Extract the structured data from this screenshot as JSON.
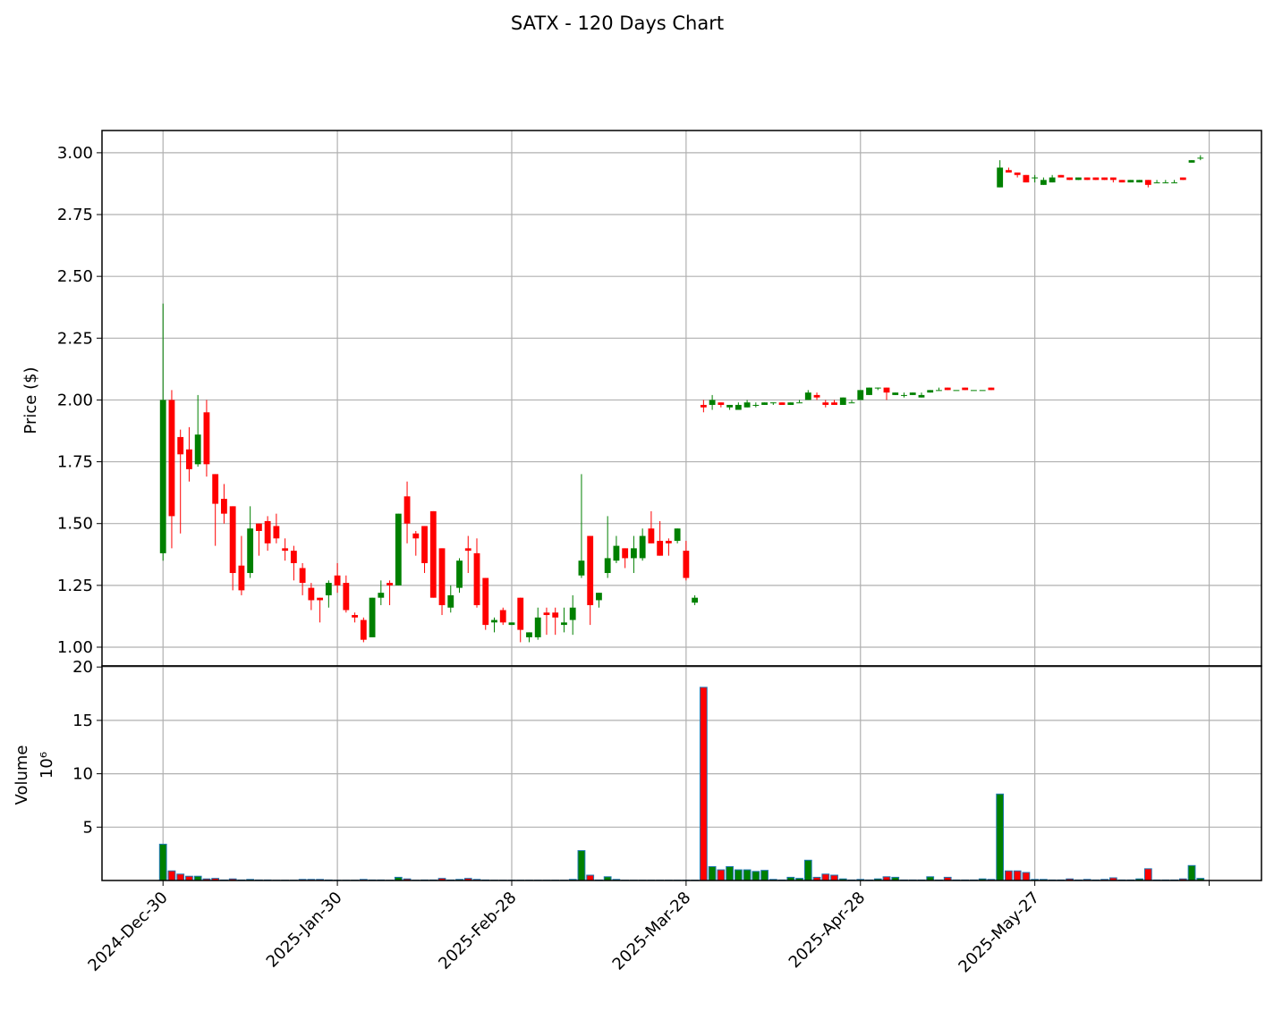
{
  "chart_data": {
    "type": "candlestick",
    "title": "SATX - 120 Days Chart",
    "ylabel": "Price ($)",
    "x": [
      0,
      1,
      2,
      3,
      4,
      5,
      6,
      7,
      8,
      9,
      10,
      11,
      12,
      13,
      14,
      15,
      16,
      17,
      18,
      19,
      20,
      21,
      22,
      23,
      24,
      25,
      26,
      27,
      28,
      29,
      30,
      31,
      32,
      33,
      34,
      35,
      36,
      37,
      38,
      39,
      40,
      41,
      42,
      43,
      44,
      45,
      46,
      47,
      48,
      49,
      50,
      51,
      52,
      53,
      54,
      55,
      56,
      57,
      58,
      59,
      60,
      61,
      62,
      63,
      64,
      65,
      66,
      67,
      68,
      69,
      70,
      71,
      72,
      73,
      74,
      75,
      76,
      77,
      78,
      79,
      80,
      81,
      82,
      83,
      84,
      85,
      86,
      87,
      88,
      89,
      90,
      91,
      92,
      93,
      94,
      95,
      96,
      97,
      98,
      99,
      100,
      101,
      102,
      103,
      104,
      105,
      106,
      107,
      108,
      109,
      110,
      111,
      112,
      113,
      114,
      115,
      116,
      117,
      118,
      119
    ],
    "open": [
      1.38,
      2.0,
      1.85,
      1.8,
      1.74,
      1.95,
      1.7,
      1.6,
      1.57,
      1.33,
      1.3,
      1.5,
      1.51,
      1.49,
      1.4,
      1.39,
      1.32,
      1.24,
      1.2,
      1.21,
      1.29,
      1.26,
      1.13,
      1.11,
      1.04,
      1.2,
      1.26,
      1.25,
      1.61,
      1.46,
      1.49,
      1.55,
      1.4,
      1.16,
      1.24,
      1.4,
      1.38,
      1.28,
      1.1,
      1.15,
      1.09,
      1.2,
      1.04,
      1.04,
      1.14,
      1.14,
      1.09,
      1.11,
      1.29,
      1.45,
      1.19,
      1.3,
      1.35,
      1.4,
      1.36,
      1.36,
      1.48,
      1.43,
      1.43,
      1.43,
      1.39,
      1.18,
      1.98,
      1.98,
      1.99,
      1.97,
      1.96,
      1.97,
      1.98,
      1.98,
      1.99,
      1.99,
      1.98,
      1.99,
      2.0,
      2.02,
      1.99,
      1.99,
      1.98,
      1.99,
      2.0,
      2.02,
      2.05,
      2.05,
      2.02,
      2.02,
      2.02,
      2.01,
      2.03,
      2.04,
      2.05,
      2.04,
      2.05,
      2.04,
      2.04,
      2.05,
      2.86,
      2.93,
      2.92,
      2.91,
      2.9,
      2.87,
      2.88,
      2.91,
      2.9,
      2.89,
      2.9,
      2.9,
      2.9,
      2.9,
      2.89,
      2.88,
      2.88,
      2.89,
      2.88,
      2.88,
      2.88,
      2.9,
      2.96,
      2.98
    ],
    "close": [
      2.0,
      1.53,
      1.78,
      1.72,
      1.86,
      1.74,
      1.58,
      1.54,
      1.3,
      1.23,
      1.48,
      1.47,
      1.42,
      1.44,
      1.39,
      1.34,
      1.26,
      1.19,
      1.19,
      1.26,
      1.25,
      1.15,
      1.12,
      1.03,
      1.2,
      1.22,
      1.25,
      1.54,
      1.5,
      1.44,
      1.34,
      1.2,
      1.17,
      1.21,
      1.35,
      1.39,
      1.17,
      1.09,
      1.11,
      1.1,
      1.1,
      1.07,
      1.06,
      1.12,
      1.13,
      1.12,
      1.1,
      1.16,
      1.35,
      1.17,
      1.22,
      1.36,
      1.41,
      1.36,
      1.4,
      1.45,
      1.42,
      1.37,
      1.42,
      1.48,
      1.28,
      1.2,
      1.97,
      2.0,
      1.98,
      1.98,
      1.98,
      1.99,
      1.98,
      1.99,
      1.99,
      1.98,
      1.99,
      1.99,
      2.03,
      2.01,
      1.98,
      1.98,
      2.01,
      1.99,
      2.04,
      2.05,
      2.05,
      2.03,
      2.03,
      2.02,
      2.03,
      2.02,
      2.04,
      2.04,
      2.04,
      2.04,
      2.04,
      2.04,
      2.04,
      2.04,
      2.94,
      2.92,
      2.91,
      2.88,
      2.9,
      2.89,
      2.9,
      2.9,
      2.89,
      2.9,
      2.89,
      2.89,
      2.89,
      2.89,
      2.88,
      2.89,
      2.89,
      2.87,
      2.88,
      2.88,
      2.88,
      2.89,
      2.97,
      2.98
    ],
    "high": [
      2.39,
      2.04,
      1.88,
      1.89,
      2.02,
      2.0,
      1.7,
      1.66,
      1.57,
      1.45,
      1.57,
      1.5,
      1.53,
      1.54,
      1.44,
      1.41,
      1.34,
      1.26,
      1.2,
      1.27,
      1.34,
      1.29,
      1.14,
      1.12,
      1.2,
      1.27,
      1.27,
      1.54,
      1.67,
      1.47,
      1.49,
      1.55,
      1.4,
      1.25,
      1.36,
      1.45,
      1.44,
      1.28,
      1.12,
      1.16,
      1.1,
      1.2,
      1.06,
      1.16,
      1.16,
      1.16,
      1.16,
      1.21,
      1.7,
      1.45,
      1.22,
      1.53,
      1.45,
      1.4,
      1.45,
      1.48,
      1.55,
      1.51,
      1.44,
      1.48,
      1.43,
      1.21,
      2.0,
      2.02,
      1.99,
      1.98,
      1.99,
      2.0,
      1.99,
      1.99,
      1.99,
      1.99,
      1.99,
      2.0,
      2.04,
      2.03,
      2.0,
      2.0,
      2.01,
      2.0,
      2.04,
      2.05,
      2.05,
      2.05,
      2.03,
      2.03,
      2.03,
      2.03,
      2.04,
      2.05,
      2.05,
      2.04,
      2.05,
      2.04,
      2.04,
      2.05,
      2.97,
      2.94,
      2.92,
      2.91,
      2.91,
      2.9,
      2.91,
      2.91,
      2.9,
      2.9,
      2.9,
      2.9,
      2.9,
      2.9,
      2.89,
      2.89,
      2.89,
      2.89,
      2.89,
      2.89,
      2.89,
      2.9,
      2.97,
      2.99
    ],
    "low": [
      1.35,
      1.4,
      1.46,
      1.67,
      1.73,
      1.69,
      1.41,
      1.5,
      1.23,
      1.21,
      1.28,
      1.37,
      1.39,
      1.42,
      1.35,
      1.27,
      1.21,
      1.15,
      1.1,
      1.16,
      1.22,
      1.14,
      1.1,
      1.02,
      1.04,
      1.17,
      1.17,
      1.25,
      1.42,
      1.37,
      1.3,
      1.2,
      1.13,
      1.14,
      1.22,
      1.3,
      1.16,
      1.07,
      1.06,
      1.09,
      1.09,
      1.02,
      1.02,
      1.03,
      1.05,
      1.05,
      1.06,
      1.05,
      1.28,
      1.09,
      1.16,
      1.28,
      1.34,
      1.32,
      1.3,
      1.35,
      1.42,
      1.37,
      1.37,
      1.42,
      1.27,
      1.17,
      1.95,
      1.96,
      1.97,
      1.96,
      1.96,
      1.97,
      1.97,
      1.98,
      1.98,
      1.98,
      1.98,
      1.99,
      2.0,
      2.0,
      1.97,
      1.98,
      1.98,
      1.99,
      2.0,
      2.02,
      2.04,
      2.0,
      2.02,
      2.01,
      2.02,
      2.01,
      2.03,
      2.04,
      2.04,
      2.04,
      2.04,
      2.04,
      2.04,
      2.04,
      2.86,
      2.92,
      2.9,
      2.88,
      2.88,
      2.87,
      2.88,
      2.9,
      2.89,
      2.89,
      2.89,
      2.89,
      2.89,
      2.88,
      2.88,
      2.88,
      2.88,
      2.86,
      2.88,
      2.88,
      2.88,
      2.89,
      2.96,
      2.97
    ],
    "volume": [
      3.4,
      0.9,
      0.6,
      0.4,
      0.4,
      0.15,
      0.2,
      0.05,
      0.15,
      0.05,
      0.1,
      0.05,
      0.05,
      0.03,
      0.03,
      0.03,
      0.1,
      0.1,
      0.1,
      0.05,
      0.03,
      0.03,
      0.03,
      0.1,
      0.05,
      0.05,
      0.03,
      0.3,
      0.15,
      0.03,
      0.05,
      0.05,
      0.2,
      0.05,
      0.1,
      0.2,
      0.1,
      0.05,
      0.03,
      0.03,
      0.03,
      0.03,
      0.03,
      0.03,
      0.03,
      0.03,
      0.03,
      0.1,
      2.8,
      0.5,
      0.05,
      0.35,
      0.1,
      0.03,
      0.03,
      0.03,
      0.03,
      0.03,
      0.03,
      0.03,
      0.03,
      0.03,
      18.1,
      1.3,
      1.0,
      1.3,
      1.0,
      1.0,
      0.85,
      0.95,
      0.1,
      0.05,
      0.3,
      0.2,
      1.9,
      0.3,
      0.6,
      0.5,
      0.15,
      0.05,
      0.1,
      0.05,
      0.15,
      0.35,
      0.3,
      0.05,
      0.05,
      0.05,
      0.35,
      0.05,
      0.3,
      0.05,
      0.05,
      0.05,
      0.15,
      0.1,
      8.1,
      0.9,
      0.9,
      0.75,
      0.1,
      0.1,
      0.05,
      0.05,
      0.15,
      0.05,
      0.1,
      0.05,
      0.1,
      0.25,
      0.05,
      0.05,
      0.15,
      1.1,
      0.05,
      0.05,
      0.05,
      0.15,
      1.4,
      0.2
    ],
    "up_color": "#008000",
    "down_color": "#ff0000",
    "volume_edge_color": "#1f77b4",
    "xlim": [
      -7,
      126
    ],
    "xticks": [
      {
        "value": 0,
        "label": "2024-Dec-30"
      },
      {
        "value": 20,
        "label": "2025-Jan-30"
      },
      {
        "value": 40,
        "label": "2025-Feb-28"
      },
      {
        "value": 60,
        "label": "2025-Mar-28"
      },
      {
        "value": 80,
        "label": "2025-Apr-28"
      },
      {
        "value": 100,
        "label": "2025-May-27"
      },
      {
        "value": 120,
        "label": null
      }
    ],
    "ylim": [
      0.924,
      3.09
    ],
    "yticks": [
      {
        "value": 1,
        "label": "1.00"
      },
      1.25,
      {
        "value": 1.5,
        "label": "1.50"
      },
      1.75,
      {
        "value": 2,
        "label": "2.00"
      },
      2.25,
      {
        "value": 2.5,
        "label": "2.50"
      },
      2.75,
      {
        "value": 3,
        "label": "3.00"
      }
    ],
    "volume_label": "Volume",
    "volume_scale_label": "10⁶",
    "volume_ylim": [
      0,
      20.1
    ],
    "volume_yticks": [
      5,
      10,
      15,
      20
    ],
    "grid": true
  }
}
